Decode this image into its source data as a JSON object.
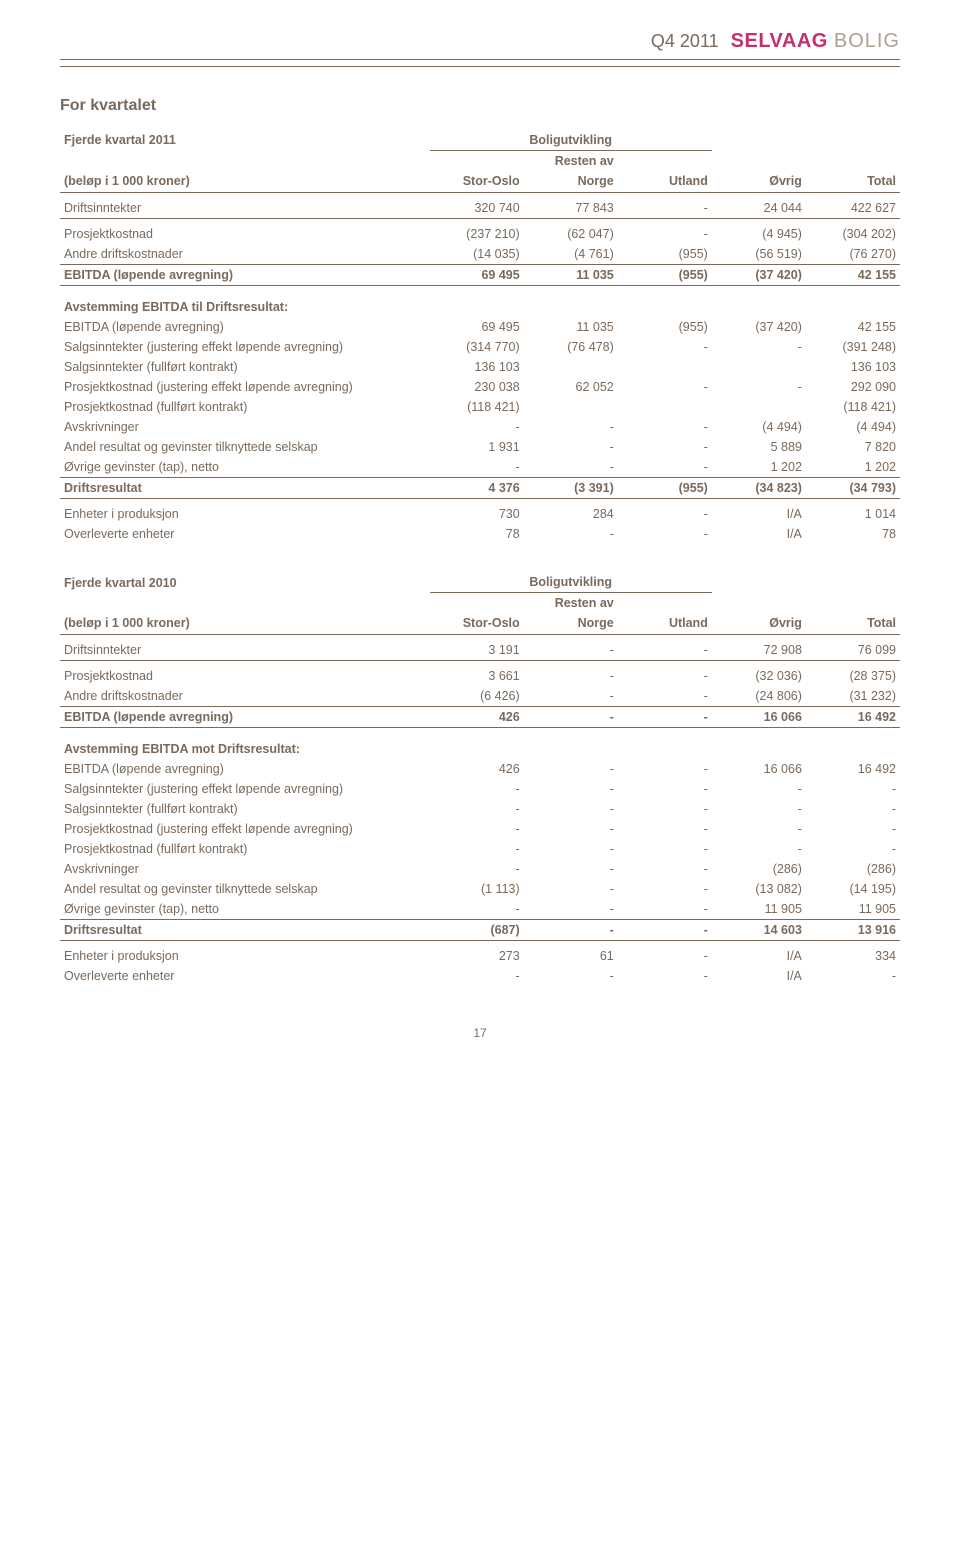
{
  "header": {
    "period": "Q4 2011",
    "logo1": "SELVAAG",
    "logo2": "BOLIG"
  },
  "section_title": "For kvartalet",
  "columns": {
    "group_label": "Boligutvikling",
    "c1": "Stor-Oslo",
    "c2": "Resten av\nNorge",
    "c3": "Utland",
    "c4": "Øvrig",
    "c5": "Total"
  },
  "t2011": {
    "title": "Fjerde kvartal 2011",
    "unit_label": "(beløp i 1 000 kroner)",
    "rows": [
      {
        "l": "Driftsinntekter",
        "v": [
          "320 740",
          "77 843",
          "-",
          "24 044",
          "422 627"
        ],
        "cls": "small-gap line-below"
      },
      {
        "l": "Prosjektkostnad",
        "v": [
          "(237 210)",
          "(62 047)",
          "-",
          "(4 945)",
          "(304 202)"
        ],
        "cls": "small-gap"
      },
      {
        "l": "Andre driftskostnader",
        "v": [
          "(14 035)",
          "(4 761)",
          "(955)",
          "(56 519)",
          "(76 270)"
        ],
        "cls": "line-below"
      },
      {
        "l": "EBITDA (løpende avregning)",
        "v": [
          "69 495",
          "11 035",
          "(955)",
          "(37 420)",
          "42 155"
        ],
        "cls": "bold-row line-below"
      },
      {
        "l": "Avstemming EBITDA til Driftsresultat:",
        "v": [
          "",
          "",
          "",
          "",
          ""
        ],
        "cls": "section-gap bold-row"
      },
      {
        "l": "EBITDA (løpende avregning)",
        "v": [
          "69 495",
          "11 035",
          "(955)",
          "(37 420)",
          "42 155"
        ]
      },
      {
        "l": "Salgsinntekter (justering effekt løpende avregning)",
        "v": [
          "(314 770)",
          "(76 478)",
          "-",
          "-",
          "(391 248)"
        ]
      },
      {
        "l": "Salgsinntekter (fullført kontrakt)",
        "v": [
          "136 103",
          "",
          "",
          "",
          "136 103"
        ]
      },
      {
        "l": "Prosjektkostnad (justering effekt løpende avregning)",
        "v": [
          "230 038",
          "62 052",
          "-",
          "-",
          "292 090"
        ]
      },
      {
        "l": "Prosjektkostnad (fullført kontrakt)",
        "v": [
          "(118 421)",
          "",
          "",
          "",
          "(118 421)"
        ]
      },
      {
        "l": "Avskrivninger",
        "v": [
          "-",
          "-",
          "-",
          "(4 494)",
          "(4 494)"
        ]
      },
      {
        "l": "Andel resultat og gevinster tilknyttede selskap",
        "v": [
          "1 931",
          "-",
          "-",
          "5 889",
          "7 820"
        ]
      },
      {
        "l": "Øvrige gevinster (tap), netto",
        "v": [
          "-",
          "-",
          "-",
          "1 202",
          "1 202"
        ],
        "cls": "line-below"
      },
      {
        "l": "Driftsresultat",
        "v": [
          "4 376",
          "(3 391)",
          "(955)",
          "(34 823)",
          "(34 793)"
        ],
        "cls": "bold-row line-below"
      },
      {
        "l": "Enheter i produksjon",
        "v": [
          "730",
          "284",
          "-",
          "I/A",
          "1 014"
        ],
        "cls": "small-gap"
      },
      {
        "l": "Overleverte enheter",
        "v": [
          "78",
          "-",
          "-",
          "I/A",
          "78"
        ]
      }
    ]
  },
  "t2010": {
    "title": "Fjerde kvartal 2010",
    "unit_label": "(beløp i 1 000 kroner)",
    "rows": [
      {
        "l": "Driftsinntekter",
        "v": [
          "3 191",
          "-",
          "-",
          "72 908",
          "76 099"
        ],
        "cls": "small-gap line-below"
      },
      {
        "l": "Prosjektkostnad",
        "v": [
          "3 661",
          "-",
          "-",
          "(32 036)",
          "(28 375)"
        ],
        "cls": "small-gap"
      },
      {
        "l": "Andre driftskostnader",
        "v": [
          "(6 426)",
          "-",
          "-",
          "(24 806)",
          "(31 232)"
        ],
        "cls": "line-below"
      },
      {
        "l": "EBITDA (løpende avregning)",
        "v": [
          "426",
          "-",
          "-",
          "16 066",
          "16 492"
        ],
        "cls": "bold-row line-below"
      },
      {
        "l": "Avstemming EBITDA mot Driftsresultat:",
        "v": [
          "",
          "",
          "",
          "",
          ""
        ],
        "cls": "section-gap bold-row"
      },
      {
        "l": "EBITDA (løpende avregning)",
        "v": [
          "426",
          "-",
          "-",
          "16 066",
          "16 492"
        ]
      },
      {
        "l": "Salgsinntekter (justering effekt løpende avregning)",
        "v": [
          "-",
          "-",
          "-",
          "-",
          "-"
        ]
      },
      {
        "l": "Salgsinntekter (fullført kontrakt)",
        "v": [
          "-",
          "-",
          "-",
          "-",
          "-"
        ]
      },
      {
        "l": "Prosjektkostnad (justering effekt løpende avregning)",
        "v": [
          "-",
          "-",
          "-",
          "-",
          "-"
        ]
      },
      {
        "l": "Prosjektkostnad (fullført kontrakt)",
        "v": [
          "-",
          "-",
          "-",
          "-",
          "-"
        ]
      },
      {
        "l": "Avskrivninger",
        "v": [
          "-",
          "-",
          "-",
          "(286)",
          "(286)"
        ]
      },
      {
        "l": "Andel resultat og gevinster tilknyttede selskap",
        "v": [
          "(1 113)",
          "-",
          "-",
          "(13 082)",
          "(14 195)"
        ]
      },
      {
        "l": "Øvrige gevinster (tap), netto",
        "v": [
          "-",
          "-",
          "-",
          "11 905",
          "11 905"
        ],
        "cls": "line-below"
      },
      {
        "l": "Driftsresultat",
        "v": [
          "(687)",
          "-",
          "-",
          "14 603",
          "13 916"
        ],
        "cls": "bold-row line-below"
      },
      {
        "l": "Enheter i produksjon",
        "v": [
          "273",
          "61",
          "-",
          "I/A",
          "334"
        ],
        "cls": "small-gap"
      },
      {
        "l": "Overleverte enheter",
        "v": [
          "-",
          "-",
          "-",
          "I/A",
          "-"
        ]
      }
    ]
  },
  "page_number": "17"
}
